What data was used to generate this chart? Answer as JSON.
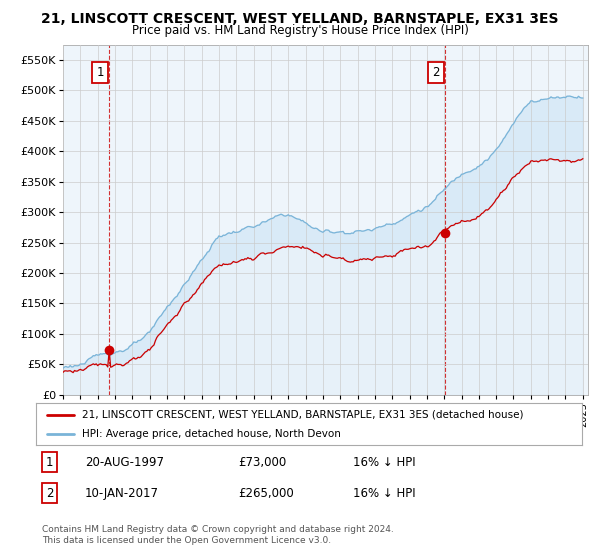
{
  "title": "21, LINSCOTT CRESCENT, WEST YELLAND, BARNSTAPLE, EX31 3ES",
  "subtitle": "Price paid vs. HM Land Registry's House Price Index (HPI)",
  "ylim": [
    0,
    575000
  ],
  "yticks": [
    0,
    50000,
    100000,
    150000,
    200000,
    250000,
    300000,
    350000,
    400000,
    450000,
    500000,
    550000
  ],
  "ytick_labels": [
    "£0",
    "£50K",
    "£100K",
    "£150K",
    "£200K",
    "£250K",
    "£300K",
    "£350K",
    "£400K",
    "£450K",
    "£500K",
    "£550K"
  ],
  "sale1_date": 1997.64,
  "sale1_price": 73000,
  "sale1_label": "1",
  "sale2_date": 2017.03,
  "sale2_price": 265000,
  "sale2_label": "2",
  "hpi_color": "#7ab4d8",
  "hpi_fill": "#cce4f5",
  "sale_color": "#cc0000",
  "vline_color": "#cc0000",
  "legend_entry1": "21, LINSCOTT CRESCENT, WEST YELLAND, BARNSTAPLE, EX31 3ES (detached house)",
  "legend_entry2": "HPI: Average price, detached house, North Devon",
  "background_color": "#ffffff",
  "chart_bg": "#eef5fb",
  "grid_color": "#cccccc"
}
